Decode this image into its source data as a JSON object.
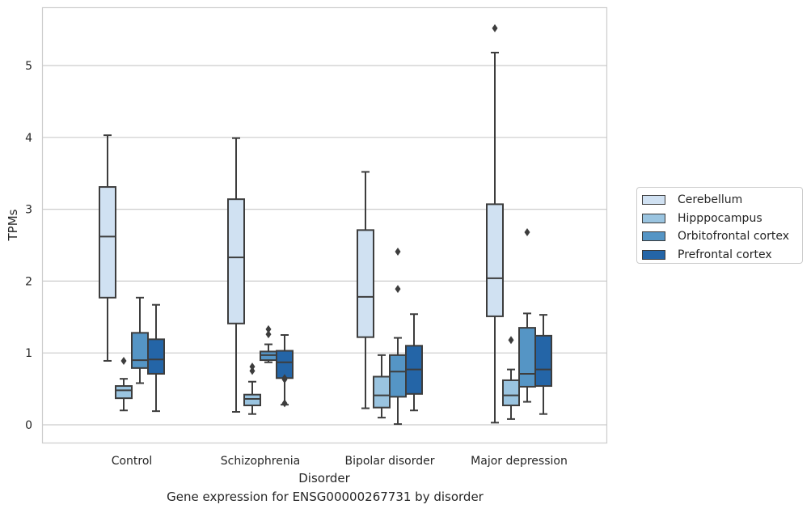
{
  "chart_data": {
    "type": "boxplot",
    "xlabel": "Disorder",
    "ylabel": "TPMs",
    "caption": "Gene expression for ENSG00000267731 by disorder",
    "categories": [
      "Control",
      "Schizophrenia",
      "Bipolar disorder",
      "Major depression"
    ],
    "ylim": [
      -0.25,
      5.8
    ],
    "yticks": [
      0,
      1,
      2,
      3,
      4,
      5
    ],
    "grid": "horizontal",
    "legend_position": "right",
    "series": [
      {
        "name": "Cerebellum",
        "color": "#d0e1f2",
        "boxes": [
          {
            "whisker_low": 0.89,
            "q1": 1.77,
            "median": 2.62,
            "q3": 3.31,
            "whisker_high": 4.03,
            "outliers": []
          },
          {
            "whisker_low": 0.18,
            "q1": 1.41,
            "median": 2.33,
            "q3": 3.14,
            "whisker_high": 3.99,
            "outliers": []
          },
          {
            "whisker_low": 0.23,
            "q1": 1.22,
            "median": 1.78,
            "q3": 2.71,
            "whisker_high": 3.52,
            "outliers": []
          },
          {
            "whisker_low": 0.03,
            "q1": 1.51,
            "median": 2.04,
            "q3": 3.07,
            "whisker_high": 5.18,
            "outliers": [
              5.52
            ]
          }
        ]
      },
      {
        "name": "Hipppocampus",
        "color": "#9ac4e0",
        "boxes": [
          {
            "whisker_low": 0.2,
            "q1": 0.37,
            "median": 0.48,
            "q3": 0.54,
            "whisker_high": 0.64,
            "outliers": [
              0.89
            ]
          },
          {
            "whisker_low": 0.15,
            "q1": 0.27,
            "median": 0.36,
            "q3": 0.42,
            "whisker_high": 0.6,
            "outliers": [
              0.75,
              0.81
            ]
          },
          {
            "whisker_low": 0.1,
            "q1": 0.24,
            "median": 0.41,
            "q3": 0.67,
            "whisker_high": 0.97,
            "outliers": []
          },
          {
            "whisker_low": 0.08,
            "q1": 0.27,
            "median": 0.41,
            "q3": 0.62,
            "whisker_high": 0.77,
            "outliers": [
              1.18
            ]
          }
        ]
      },
      {
        "name": "Orbitofrontal cortex",
        "color": "#5595c5",
        "boxes": [
          {
            "whisker_low": 0.58,
            "q1": 0.79,
            "median": 0.9,
            "q3": 1.28,
            "whisker_high": 1.77,
            "outliers": []
          },
          {
            "whisker_low": 0.87,
            "q1": 0.9,
            "median": 0.97,
            "q3": 1.02,
            "whisker_high": 1.12,
            "outliers": [
              1.26,
              1.33
            ]
          },
          {
            "whisker_low": 0.01,
            "q1": 0.39,
            "median": 0.74,
            "q3": 0.97,
            "whisker_high": 1.21,
            "outliers": [
              1.89,
              2.41
            ]
          },
          {
            "whisker_low": 0.32,
            "q1": 0.53,
            "median": 0.71,
            "q3": 1.35,
            "whisker_high": 1.55,
            "outliers": [
              2.68
            ]
          }
        ]
      },
      {
        "name": "Prefrontal cortex",
        "color": "#2465a7",
        "boxes": [
          {
            "whisker_low": 0.19,
            "q1": 0.71,
            "median": 0.91,
            "q3": 1.19,
            "whisker_high": 1.67,
            "outliers": []
          },
          {
            "whisker_low": 0.28,
            "q1": 0.65,
            "median": 0.87,
            "q3": 1.03,
            "whisker_high": 1.25,
            "outliers": [
              0.3,
              0.63,
              0.65
            ]
          },
          {
            "whisker_low": 0.2,
            "q1": 0.43,
            "median": 0.77,
            "q3": 1.1,
            "whisker_high": 1.54,
            "outliers": []
          },
          {
            "whisker_low": 0.15,
            "q1": 0.54,
            "median": 0.77,
            "q3": 1.24,
            "whisker_high": 1.53,
            "outliers": []
          }
        ]
      }
    ]
  }
}
